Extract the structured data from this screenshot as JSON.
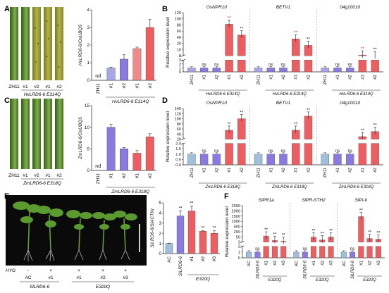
{
  "colors": {
    "gray": "#b9b9be",
    "lavender": "#a9a6e8",
    "purple": "#8a79e0",
    "salmon": "#f08a8a",
    "red": "#ee5d60",
    "blue": "#9fbfdc",
    "black": "#222222",
    "starRed": "#d93030"
  },
  "panels": {
    "A": {
      "letter": "A",
      "leaf_labels": [
        "ZH11",
        "#1",
        "#2",
        "#1",
        "#2"
      ],
      "under_line_label": "HvLRD6-6 E314Q",
      "chart_data": {
        "type": "bar",
        "categories": [
          "ZH11",
          "#1",
          "#2",
          "#1",
          "#2"
        ],
        "group_label": "HvLRD6-6 E314Q",
        "values": [
          0,
          0.7,
          1.2,
          1.8,
          3.0
        ],
        "errors": [
          0,
          0.05,
          0.25,
          0.08,
          0.45
        ],
        "ylabel": "HvLRD6-6/OsUBQ5",
        "ylim": [
          0,
          4
        ],
        "yticks": [
          0,
          1,
          2,
          3,
          4
        ],
        "annotations": [
          "nd"
        ]
      }
    },
    "B": {
      "letter": "B",
      "ylabel": "Relative expression level",
      "chart_data": [
        {
          "type": "bar",
          "title": "OsNPR10",
          "categories": [
            "ZH11",
            "#1",
            "#2",
            "#1",
            "#2"
          ],
          "group_label": "HvLRD6-6 E314Q",
          "values": [
            1,
            1,
            1,
            90,
            62
          ],
          "stars": [
            "",
            "ns",
            "ns",
            "**",
            "**"
          ]
        },
        {
          "type": "bar",
          "title": "BETV1",
          "categories": [
            "ZH11",
            "#1",
            "#2",
            "#1",
            "#2"
          ],
          "group_label": "HvLRD6-6 E314Q",
          "values": [
            1,
            1,
            1,
            52,
            35
          ],
          "stars": [
            "",
            "ns",
            "ns",
            "**",
            "**"
          ]
        },
        {
          "type": "bar",
          "title": "04g10010",
          "categories": [
            "ZH11",
            "#1",
            "#2",
            "#1",
            "#2"
          ],
          "group_label": "HvLRD6-6 E314Q",
          "values": [
            1,
            1,
            1,
            10,
            8
          ],
          "stars": [
            "",
            "ns",
            "ns",
            "**",
            "**"
          ]
        }
      ],
      "yticks_lower": [
        "0",
        "1",
        "2",
        "3"
      ],
      "yticks_upper": [
        "8",
        "10",
        "20",
        "40",
        "60",
        "80",
        "100",
        "120"
      ]
    },
    "C": {
      "letter": "C",
      "leaf_labels": [
        "ZH11",
        "#1",
        "#2",
        "#1",
        "#2"
      ],
      "under_line_label": "ZmLRD6-6 E318Q",
      "chart_data": {
        "type": "bar",
        "categories": [
          "ZH11",
          "#1",
          "#2",
          "#1",
          "#2"
        ],
        "group_label": "ZmLRD6-6 E318Q",
        "values": [
          0,
          10,
          5,
          4,
          7.8
        ],
        "errors": [
          0,
          0.7,
          0.3,
          0.6,
          0.7
        ],
        "ylabel": "ZmLRD6-6/OsUBQ5",
        "ylim": [
          0,
          15
        ],
        "yticks": [
          0,
          5,
          10,
          15
        ],
        "annotations": [
          "nd"
        ]
      }
    },
    "D": {
      "letter": "D",
      "ylabel": "Relative expression level",
      "chart_data": [
        {
          "type": "bar",
          "title": "OsNPR10",
          "categories": [
            "ZH11",
            "#1",
            "#2",
            "#1",
            "#2"
          ],
          "group_label": "ZmLRD6-6 E318Q",
          "values": [
            1,
            1,
            1,
            55,
            100
          ],
          "stars": [
            "",
            "ns",
            "ns",
            "**",
            "**"
          ]
        },
        {
          "type": "bar",
          "title": "BETV1",
          "categories": [
            "ZH11",
            "#1",
            "#2",
            "#1",
            "#2"
          ],
          "group_label": "ZmLRD6-6 E318Q",
          "values": [
            1,
            1,
            1,
            55,
            110
          ],
          "stars": [
            "",
            "ns",
            "ns",
            "**",
            "**"
          ]
        },
        {
          "type": "bar",
          "title": "04g10010",
          "categories": [
            "ZH11",
            "#1",
            "#2",
            "#1",
            "#2"
          ],
          "group_label": "ZmLRD6-6 E318Q",
          "values": [
            1,
            1,
            1,
            30,
            50
          ],
          "stars": [
            "",
            "ns",
            "ns",
            "**",
            "**"
          ]
        }
      ],
      "yticks_lower": [
        "0.0",
        "0.5",
        "1.0",
        "1.5",
        "2.0"
      ],
      "yticks_upper": [
        "20",
        "40",
        "60",
        "80",
        "100",
        "120",
        "140"
      ]
    },
    "E": {
      "letter": "E",
      "hyg_label": "HYG",
      "hyg_row": [
        "-",
        "+",
        "+",
        "+",
        "+"
      ],
      "genotype_row": [
        "AC",
        "#1",
        "#1",
        "#2",
        "#3"
      ],
      "group_labels": [
        "SlLRD6-6",
        "E320Q"
      ],
      "chart_data": {
        "type": "bar",
        "categories": [
          "AC",
          "SlLRD6-6",
          "#1",
          "#2",
          "#3"
        ],
        "group_label": "E320Q",
        "values": [
          1.0,
          3.7,
          4.2,
          2.2,
          2.0
        ],
        "errors": [
          0.03,
          0.5,
          0.5,
          0.05,
          0.25
        ],
        "stars": [
          "",
          "**",
          "**",
          "**",
          "**"
        ],
        "ylabel": "SlLRD6-6/SlACTIN",
        "ylim": [
          0,
          5
        ],
        "yticks": [
          0,
          1,
          2,
          3,
          4,
          5
        ]
      }
    },
    "F": {
      "letter": "F",
      "ylabel": "Relative expression level",
      "chart_data": [
        {
          "type": "bar",
          "title": "SlPR1a",
          "categories": [
            "AC",
            "SlLRD6-6",
            "#1",
            "#2",
            "#3"
          ],
          "group_label": "E320Q",
          "values": [
            1,
            1,
            420,
            110,
            50
          ],
          "stars": [
            "",
            "ns",
            "**",
            "**",
            "**"
          ]
        },
        {
          "type": "bar",
          "title": "SlPR-STH2",
          "categories": [
            "AC",
            "SlLRD6-6",
            "#1",
            "#2",
            "#3"
          ],
          "group_label": "E320Q",
          "values": [
            1,
            1,
            340,
            150,
            350
          ],
          "stars": [
            "",
            "ns",
            "**",
            "**",
            "**"
          ]
        },
        {
          "type": "bar",
          "title": "SlPI-II",
          "categories": [
            "AC",
            "SlLRD6-6",
            "#1",
            "#2",
            "#3"
          ],
          "group_label": "E320Q",
          "values": [
            1,
            1,
            1750,
            250,
            200
          ],
          "stars": [
            "",
            "ns",
            "**",
            "**",
            "**"
          ]
        }
      ],
      "yticks_lower": [
        "0",
        "1",
        "2"
      ],
      "yticks_upper": [
        "3",
        "50",
        "200",
        "500",
        "1000",
        "1500",
        "2000",
        "2500"
      ]
    }
  }
}
